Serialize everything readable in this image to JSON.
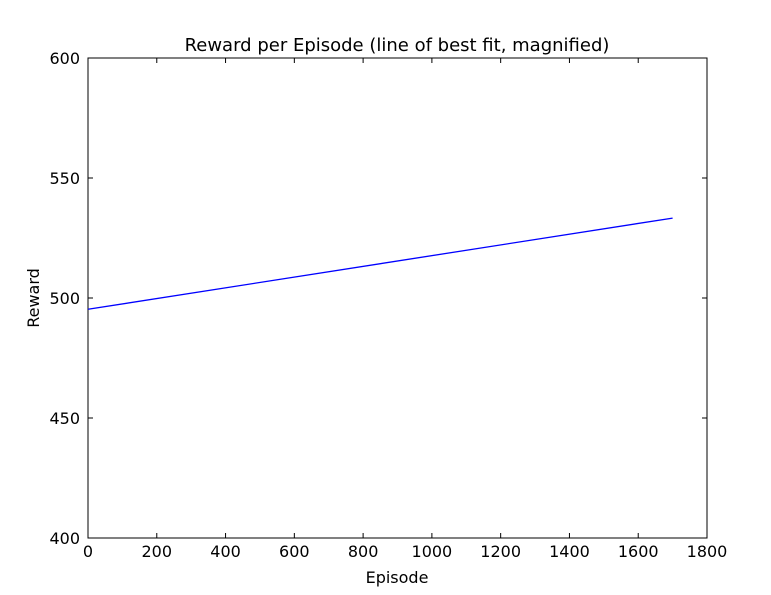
{
  "chart_data": {
    "type": "line",
    "title": "Reward per Episode (line of best fit, magnified)",
    "xlabel": "Episode",
    "ylabel": "Reward",
    "xlim": [
      0,
      1800
    ],
    "ylim": [
      400,
      600
    ],
    "xticks": [
      0,
      200,
      400,
      600,
      800,
      1000,
      1200,
      1400,
      1600,
      1800
    ],
    "yticks": [
      400,
      450,
      500,
      550,
      600
    ],
    "grid": false,
    "legend": "none",
    "series": [
      {
        "color": "#0000ff",
        "x": [
          0,
          1700
        ],
        "y": [
          495.3,
          533.3
        ]
      }
    ]
  }
}
